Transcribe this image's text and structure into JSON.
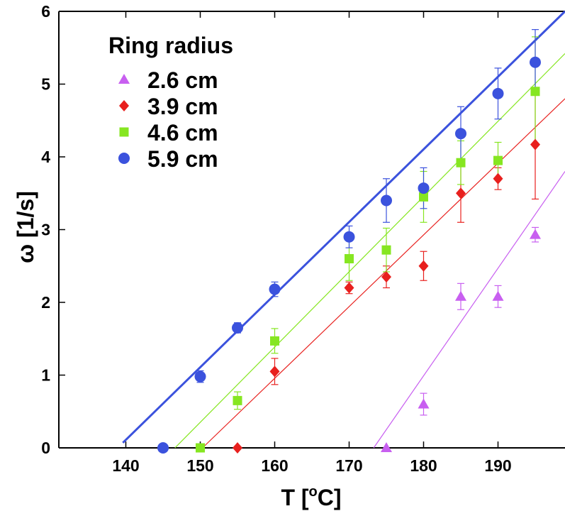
{
  "chart_data": {
    "type": "scatter",
    "xlabel": "T [",
    "xlabel_unit": "o",
    "xlabel_end": "C]",
    "ylabel": "ω [1/s]",
    "xlim": [
      131,
      199
    ],
    "ylim": [
      0,
      6
    ],
    "x_ticks": [
      140,
      150,
      160,
      170,
      180,
      190
    ],
    "y_ticks": [
      0,
      1,
      2,
      3,
      4,
      5,
      6
    ],
    "legend": {
      "title": "Ring radius",
      "placement": "top-left"
    },
    "grid": false,
    "series": [
      {
        "name": "2.6 cm",
        "color": "#c85ff0",
        "marker": "triangle",
        "points": [
          {
            "x": 175,
            "y": 0.0,
            "err": 0
          },
          {
            "x": 180,
            "y": 0.6,
            "err": 0.15
          },
          {
            "x": 185,
            "y": 2.08,
            "err": 0.18
          },
          {
            "x": 190,
            "y": 2.08,
            "err": 0.15
          },
          {
            "x": 195,
            "y": 2.93,
            "err": 0.1
          }
        ],
        "fit": {
          "x0": 173.3,
          "y0": 0.0,
          "x1": 199,
          "y1": 3.8
        }
      },
      {
        "name": "3.9 cm",
        "color": "#e8201e",
        "marker": "diamond",
        "points": [
          {
            "x": 155,
            "y": 0.0,
            "err": 0
          },
          {
            "x": 160,
            "y": 1.05,
            "err": 0.18
          },
          {
            "x": 170,
            "y": 2.2,
            "err": 0.08
          },
          {
            "x": 175,
            "y": 2.35,
            "err": 0.15
          },
          {
            "x": 180,
            "y": 2.5,
            "err": 0.2
          },
          {
            "x": 185,
            "y": 3.5,
            "err": 0.4
          },
          {
            "x": 190,
            "y": 3.7,
            "err": 0.15
          },
          {
            "x": 195,
            "y": 4.17,
            "err": 0.75
          }
        ],
        "fit": {
          "x0": 150.3,
          "y0": 0.0,
          "x1": 199,
          "y1": 4.8
        }
      },
      {
        "name": "4.6 cm",
        "color": "#86e621",
        "marker": "square",
        "points": [
          {
            "x": 150,
            "y": 0.0,
            "err": 0
          },
          {
            "x": 155,
            "y": 0.65,
            "err": 0.12
          },
          {
            "x": 160,
            "y": 1.47,
            "err": 0.17
          },
          {
            "x": 170,
            "y": 2.6,
            "err": 0.3
          },
          {
            "x": 175,
            "y": 2.72,
            "err": 0.3
          },
          {
            "x": 180,
            "y": 3.45,
            "err": 0.35
          },
          {
            "x": 185,
            "y": 3.92,
            "err": 0.3
          },
          {
            "x": 190,
            "y": 3.95,
            "err": 0.25
          },
          {
            "x": 195,
            "y": 4.9,
            "err": 0.75
          }
        ],
        "fit": {
          "x0": 146.6,
          "y0": 0.0,
          "x1": 199,
          "y1": 5.42
        }
      },
      {
        "name": "5.9 cm",
        "color": "#3b52dd",
        "marker": "circle",
        "points": [
          {
            "x": 145,
            "y": 0.0,
            "err": 0
          },
          {
            "x": 150,
            "y": 0.98,
            "err": 0.08
          },
          {
            "x": 155,
            "y": 1.65,
            "err": 0.07
          },
          {
            "x": 160,
            "y": 2.18,
            "err": 0.1
          },
          {
            "x": 170,
            "y": 2.9,
            "err": 0.15
          },
          {
            "x": 175,
            "y": 3.4,
            "err": 0.3
          },
          {
            "x": 180,
            "y": 3.57,
            "err": 0.28
          },
          {
            "x": 185,
            "y": 4.32,
            "err": 0.37
          },
          {
            "x": 190,
            "y": 4.87,
            "err": 0.35
          },
          {
            "x": 195,
            "y": 5.3,
            "err": 0.45
          }
        ],
        "fit": {
          "x0": 139.6,
          "y0": 0.07,
          "x1": 199,
          "y1": 6.0
        }
      }
    ]
  }
}
